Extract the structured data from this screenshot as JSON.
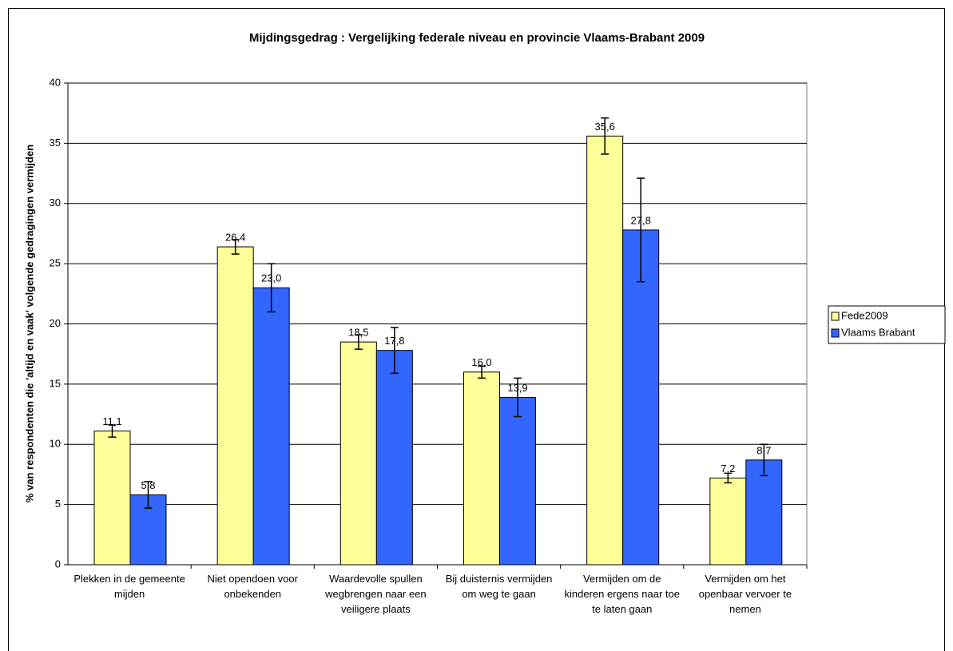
{
  "chart_data": {
    "type": "bar",
    "title": "Mijdingsgedrag : Vergelijking federale niveau en provincie Vlaams-Brabant 2009",
    "y_label": "% van respondenten die 'altijd en vaak' volgende gedragingen vermijden",
    "categories": [
      "Plekken in de gemeente mijden",
      "Niet opendoen voor onbekenden",
      "Waardevolle spullen wegbrengen naar een veiligere plaats",
      "Bij duisternis vermijden om weg te gaan",
      "Vermijden om de kinderen ergens naar toe te laten gaan",
      "Vermijden om het openbaar vervoer te nemen"
    ],
    "series": [
      {
        "name": "Fede2009",
        "color": "#ffff99",
        "values": [
          11.1,
          26.4,
          18.5,
          16.0,
          35.6,
          7.2
        ],
        "errors": [
          0.5,
          0.6,
          0.6,
          0.5,
          1.5,
          0.4
        ],
        "value_labels": [
          "11,1",
          "26,4",
          "18,5",
          "16,0",
          "35,6",
          "7,2"
        ]
      },
      {
        "name": "Vlaams Brabant",
        "color": "#3366ff",
        "values": [
          5.8,
          23.0,
          17.8,
          13.9,
          27.8,
          8.7
        ],
        "errors": [
          1.1,
          2.0,
          1.9,
          1.6,
          4.3,
          1.3
        ],
        "value_labels": [
          "5,8",
          "23,0",
          "17,8",
          "13,9",
          "27,8",
          "8,7"
        ]
      }
    ],
    "ylim": [
      0,
      40
    ],
    "yticks": [
      0,
      5,
      10,
      15,
      20,
      25,
      30,
      35,
      40
    ],
    "grid": true,
    "legend": "right"
  }
}
